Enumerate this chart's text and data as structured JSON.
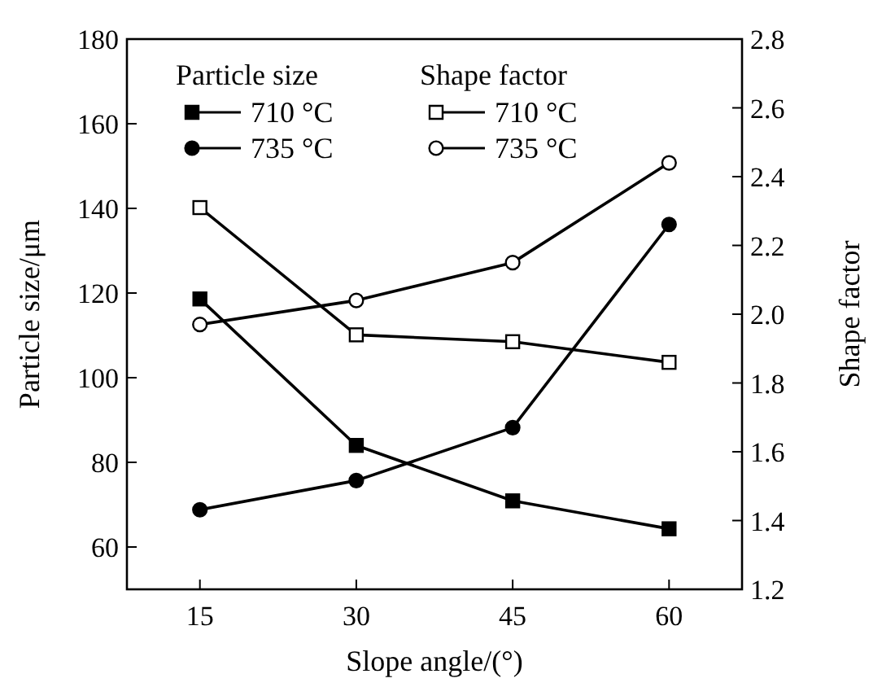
{
  "chart_data": {
    "type": "line",
    "xlabel": "Slope angle/(°)",
    "ylabel": "Particle size/μm",
    "y2label": "Shape factor",
    "x": [
      15,
      30,
      45,
      60
    ],
    "xlim": [
      8,
      67
    ],
    "xticks": [
      15,
      30,
      45,
      60
    ],
    "ylim": [
      50,
      180
    ],
    "yticks": [
      60,
      80,
      100,
      120,
      140,
      160,
      180
    ],
    "y2lim": [
      1.2,
      2.8
    ],
    "y2ticks": [
      {
        "value": 1.2,
        "label": "1.2"
      },
      {
        "value": 1.4,
        "label": "1.4"
      },
      {
        "value": 1.6,
        "label": "1.6"
      },
      {
        "value": 1.8,
        "label": "1.8"
      },
      {
        "value": 2.0,
        "label": "2.0"
      },
      {
        "value": 2.2,
        "label": "2.2"
      },
      {
        "value": 2.4,
        "label": "2.4"
      },
      {
        "value": 2.6,
        "label": "2.6"
      },
      {
        "value": 2.8,
        "label": "2.8"
      }
    ],
    "grid": false,
    "legend": "top",
    "line_style": "solid",
    "annotations": [
      "Particle size",
      "Shape factor"
    ],
    "series": [
      {
        "name": "710 °C",
        "color": "#000000",
        "marker": "square",
        "values": [
          118.6,
          84,
          70.9,
          64.3
        ]
      },
      {
        "name": "735 °C",
        "color": "#000000",
        "marker": "circle",
        "values": [
          68.8,
          75.7,
          88.2,
          136.2
        ]
      },
      {
        "name": "710 °C",
        "color": "#000000",
        "marker": "square",
        "axis": "y2",
        "values": [
          2.31,
          1.94,
          1.92,
          1.86
        ]
      },
      {
        "name": "735 °C",
        "color": "#000000",
        "marker": "circle",
        "axis": "y2",
        "values": [
          1.97,
          2.04,
          2.15,
          2.44
        ]
      }
    ]
  }
}
